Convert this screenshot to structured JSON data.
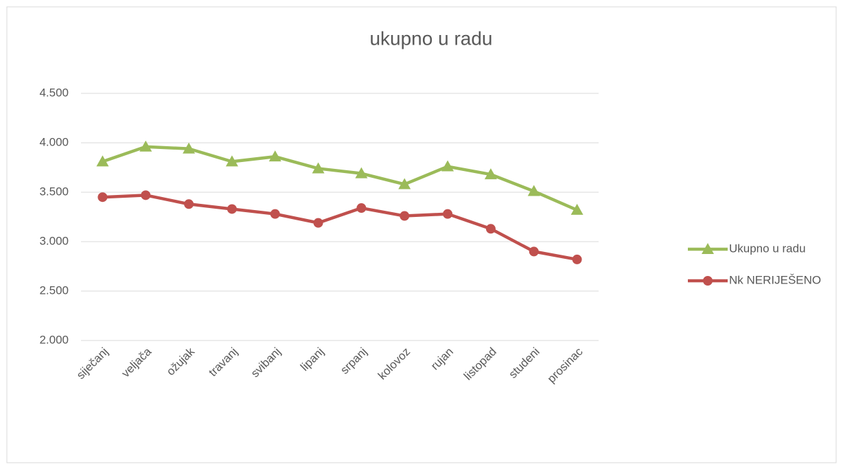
{
  "chart_data": {
    "type": "line",
    "title": "ukupno u radu",
    "categories": [
      "siječanj",
      "veljača",
      "ožujak",
      "travanj",
      "svibanj",
      "lipanj",
      "srpanj",
      "kolovoz",
      "rujan",
      "listopad",
      "studeni",
      "prosinac"
    ],
    "series": [
      {
        "name": "Ukupno u radu",
        "color": "#9bbb59",
        "marker": "triangle",
        "values": [
          3810,
          3960,
          3940,
          3810,
          3860,
          3740,
          3690,
          3580,
          3760,
          3680,
          3510,
          3320
        ]
      },
      {
        "name": "Nk NERIJEŠENO",
        "color": "#c0504d",
        "marker": "circle",
        "values": [
          3450,
          3470,
          3380,
          3330,
          3280,
          3190,
          3340,
          3260,
          3280,
          3130,
          2900,
          2820
        ]
      }
    ],
    "ylim": [
      2000,
      4500
    ],
    "yticks": [
      {
        "value": 2000,
        "label": "2.000"
      },
      {
        "value": 2500,
        "label": "2.500"
      },
      {
        "value": 3000,
        "label": "3.000"
      },
      {
        "value": 3500,
        "label": "3.500"
      },
      {
        "value": 4000,
        "label": "4.000"
      },
      {
        "value": 4500,
        "label": "4.500"
      }
    ],
    "grid": true,
    "legend": "right"
  }
}
